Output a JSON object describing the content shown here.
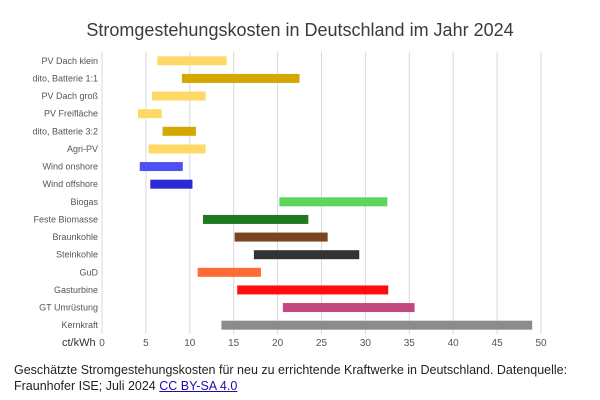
{
  "chart_data": {
    "type": "bar",
    "orientation": "horizontal",
    "title": "Stromgestehungskosten in Deutschland im Jahr 2024",
    "xlabel": "ct/kWh",
    "ylabel": "",
    "xlim": [
      0,
      50
    ],
    "xticks": [
      "0",
      "5",
      "10",
      "15",
      "20",
      "25",
      "30",
      "35",
      "40",
      "45",
      "50"
    ],
    "grid": true,
    "categories": [
      "PV Dach klein",
      "dito, Batterie 1:1",
      "PV Dach groß",
      "PV Freifläche",
      "dito, Batterie 3:2",
      "Agri-PV",
      "Wind onshore",
      "Wind offshore",
      "Biogas",
      "Feste Biomasse",
      "Braunkohle",
      "Steinkohle",
      "GuD",
      "Gasturbine",
      "GT Umrüstung",
      "Kernkraft"
    ],
    "ranges": [
      [
        6.3,
        14.2
      ],
      [
        9.1,
        22.5
      ],
      [
        5.7,
        11.8
      ],
      [
        4.1,
        6.8
      ],
      [
        6.9,
        10.7
      ],
      [
        5.3,
        11.8
      ],
      [
        4.3,
        9.2
      ],
      [
        5.5,
        10.3
      ],
      [
        20.2,
        32.5
      ],
      [
        11.5,
        23.5
      ],
      [
        15.1,
        25.7
      ],
      [
        17.3,
        29.3
      ],
      [
        10.9,
        18.1
      ],
      [
        15.4,
        32.6
      ],
      [
        20.6,
        35.6
      ],
      [
        13.6,
        49.0
      ]
    ],
    "colors": [
      "#ffd966",
      "#d4a800",
      "#ffd966",
      "#ffd966",
      "#d4a800",
      "#ffd966",
      "#5050f0",
      "#2a2ad6",
      "#5cd65c",
      "#1e7a1e",
      "#7a4520",
      "#333333",
      "#ff6b35",
      "#ff0d0d",
      "#c2487f",
      "#8c8c8c"
    ]
  },
  "caption": {
    "text": "Geschätzte Stromgestehungskosten für neu zu errichtende Kraftwerke in Deutschland. Datenquelle: Fraunhofer ISE; Juli 2024 ",
    "link_text": "CC BY-SA 4.0"
  }
}
